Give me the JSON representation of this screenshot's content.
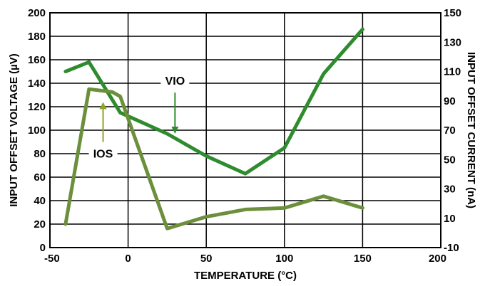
{
  "chart_data": {
    "type": "line",
    "xlabel": "TEMPERATURE (°C)",
    "ylabel": "INPUT OFFSET VOLTAGE (µV)",
    "y2label": "INPUT OFFSET CURRENT (nA)",
    "xlim": [
      -50,
      200
    ],
    "ylim": [
      0,
      200
    ],
    "y2lim": [
      -10,
      150
    ],
    "x_ticks": [
      "-50",
      "0",
      "50",
      "100",
      "150",
      "200"
    ],
    "y_ticks": [
      "0",
      "20",
      "40",
      "60",
      "80",
      "100",
      "120",
      "140",
      "160",
      "180",
      "200"
    ],
    "y2_ticks": [
      "-10",
      "10",
      "30",
      "50",
      "70",
      "90",
      "110",
      "130",
      "150"
    ],
    "grid": true,
    "series": [
      {
        "name": "VIO",
        "axis": "left",
        "color": "#2e8b2e",
        "x": [
          -40,
          -25,
          -5,
          25,
          50,
          75,
          100,
          125,
          150
        ],
        "y": [
          150,
          158,
          115,
          97,
          78,
          63,
          85,
          148,
          186
        ]
      },
      {
        "name": "IOS",
        "axis": "right",
        "color": "#6b8f3a",
        "x": [
          -40,
          -25,
          -10,
          -5,
          25,
          50,
          75,
          100,
          125,
          150
        ],
        "y": [
          6,
          98,
          96,
          93,
          3,
          11,
          16,
          17,
          25,
          17
        ]
      }
    ],
    "annotations": [
      {
        "text": "VIO",
        "series": "VIO"
      },
      {
        "text": "IOS",
        "series": "IOS"
      }
    ]
  }
}
